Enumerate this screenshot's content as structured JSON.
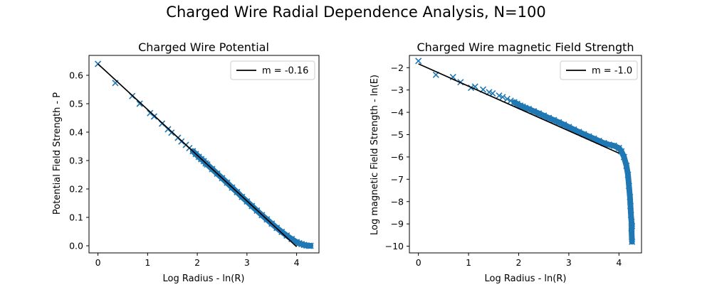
{
  "figure": {
    "suptitle": "Charged Wire Radial Dependence Analysis, N=100"
  },
  "colors": {
    "marker": "#1f77b4",
    "fit_line": "#000000"
  },
  "chart_data": [
    {
      "type": "scatter",
      "title": "Charged Wire Potential",
      "xlabel": "Log Radius - ln(R)",
      "ylabel": "Potential Field  Strength - P",
      "xlim": [
        -0.18,
        4.45
      ],
      "ylim": [
        -0.025,
        0.67
      ],
      "xticks": [
        0,
        1,
        2,
        3,
        4
      ],
      "yticks": [
        0.0,
        0.1,
        0.2,
        0.3,
        0.4,
        0.5,
        0.6
      ],
      "ytick_labels": [
        "0.0",
        "0.1",
        "0.2",
        "0.3",
        "0.4",
        "0.5",
        "0.6"
      ],
      "grid": false,
      "legend_position": "top-right",
      "series": [
        {
          "name": "m = -0.16",
          "kind": "line",
          "x": [
            0.0,
            4.0
          ],
          "y": [
            0.64,
            -0.003
          ]
        },
        {
          "kind": "scatter",
          "marker": "x",
          "x": [
            0.0,
            0.35,
            0.69,
            0.84,
            1.05,
            1.13,
            1.29,
            1.41,
            1.48,
            1.61,
            1.68,
            1.77,
            1.84,
            1.91,
            1.97,
            2.03,
            2.08,
            2.13,
            2.17,
            2.2,
            2.3,
            2.4,
            2.5,
            2.6,
            2.7,
            2.8,
            2.9,
            3.0,
            3.1,
            3.2,
            3.3,
            3.4,
            3.5,
            3.6,
            3.7,
            3.8,
            3.9,
            4.0,
            4.05,
            4.1,
            4.15,
            4.2,
            4.25,
            4.28
          ],
          "y": [
            0.64,
            0.573,
            0.527,
            0.5,
            0.467,
            0.455,
            0.43,
            0.41,
            0.398,
            0.38,
            0.367,
            0.355,
            0.344,
            0.333,
            0.323,
            0.313,
            0.305,
            0.298,
            0.29,
            0.286,
            0.27,
            0.254,
            0.238,
            0.222,
            0.205,
            0.189,
            0.172,
            0.156,
            0.14,
            0.124,
            0.108,
            0.093,
            0.078,
            0.063,
            0.049,
            0.036,
            0.024,
            0.013,
            0.009,
            0.006,
            0.003,
            0.001,
            0.0,
            0.0
          ]
        }
      ]
    },
    {
      "type": "scatter",
      "title": "Charged Wire magnetic Field Strength",
      "xlabel": "Log Radius - ln(R)",
      "ylabel": "Log magnetic Field Strength - ln(E)",
      "xlim": [
        -0.18,
        4.45
      ],
      "ylim": [
        -10.3,
        -1.45
      ],
      "xticks": [
        0,
        1,
        2,
        3,
        4
      ],
      "yticks": [
        -10,
        -9,
        -8,
        -7,
        -6,
        -5,
        -4,
        -3,
        -2
      ],
      "ytick_labels": [
        "−10",
        "−9",
        "−8",
        "−7",
        "−6",
        "−5",
        "−4",
        "−3",
        "−2"
      ],
      "grid": false,
      "legend_position": "top-right",
      "series": [
        {
          "name": "m = -1.0",
          "kind": "line",
          "x": [
            0.0,
            4.0
          ],
          "y": [
            -1.83,
            -5.83
          ]
        },
        {
          "kind": "scatter",
          "marker": "x",
          "x": [
            0.0,
            0.35,
            0.69,
            0.84,
            1.05,
            1.13,
            1.29,
            1.41,
            1.48,
            1.61,
            1.68,
            1.77,
            1.84,
            1.91,
            1.97,
            2.03,
            2.08,
            2.13,
            2.2,
            2.3,
            2.4,
            2.5,
            2.6,
            2.7,
            2.8,
            2.9,
            3.0,
            3.1,
            3.2,
            3.3,
            3.4,
            3.5,
            3.6,
            3.7,
            3.8,
            3.9,
            4.0,
            4.05,
            4.1,
            4.15,
            4.18,
            4.2,
            4.22,
            4.23,
            4.24,
            4.25,
            4.26,
            4.25,
            4.26
          ],
          "y": [
            -1.7,
            -2.32,
            -2.42,
            -2.65,
            -2.9,
            -2.85,
            -2.98,
            -3.1,
            -3.15,
            -3.25,
            -3.32,
            -3.4,
            -3.48,
            -3.55,
            -3.62,
            -3.7,
            -3.75,
            -3.8,
            -3.85,
            -3.95,
            -4.05,
            -4.15,
            -4.25,
            -4.35,
            -4.45,
            -4.55,
            -4.66,
            -4.77,
            -4.88,
            -4.98,
            -5.08,
            -5.18,
            -5.28,
            -5.38,
            -5.45,
            -5.5,
            -5.6,
            -5.75,
            -6.0,
            -6.4,
            -6.8,
            -7.3,
            -7.8,
            -8.2,
            -8.6,
            -8.9,
            -9.1,
            -9.2,
            -9.8
          ]
        }
      ]
    }
  ]
}
